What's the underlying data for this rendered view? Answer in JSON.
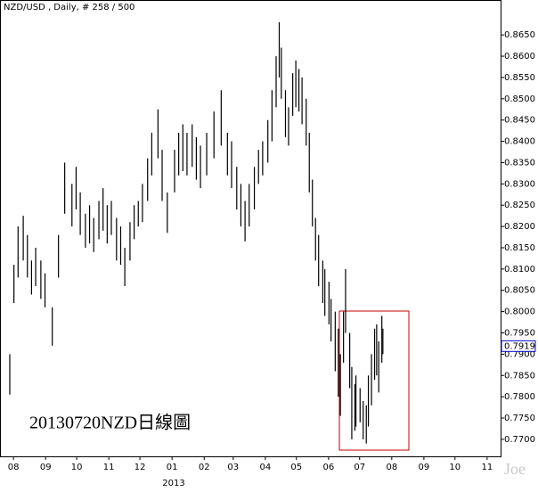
{
  "chart_data": {
    "type": "hilo",
    "title": "NZD/USD , Daily, # 258 / 500",
    "annotation": "20130720NZD日線圖",
    "watermark": "Joe",
    "year_label": "2013",
    "color": "#000000",
    "current_price": {
      "value": 0.7919,
      "label": "0.7919"
    },
    "current_price_color": "#0000cc",
    "x": [
      -4,
      0,
      4,
      9,
      13,
      17,
      21,
      26,
      30,
      37,
      43,
      49,
      56,
      60,
      64,
      69,
      73,
      77,
      82,
      86,
      90,
      94,
      99,
      103,
      107,
      112,
      116,
      120,
      124,
      129,
      133,
      139,
      143,
      148,
      155,
      159,
      163,
      167,
      172,
      176,
      180,
      186,
      193,
      200,
      206,
      210,
      215,
      219,
      223,
      227,
      232,
      236,
      240,
      245,
      249,
      253,
      256,
      258,
      262,
      265,
      269,
      272,
      275,
      278,
      282,
      285,
      288,
      291,
      294,
      298,
      300,
      304,
      306,
      310,
      313,
      315,
      318,
      320,
      324,
      326,
      329,
      330,
      334,
      337,
      340,
      342,
      345,
      348,
      350,
      352,
      355,
      356
    ],
    "high": [
      0.79,
      0.811,
      0.82,
      0.8225,
      0.818,
      0.812,
      0.815,
      0.812,
      0.809,
      0.801,
      0.818,
      0.835,
      0.83,
      0.834,
      0.828,
      0.823,
      0.825,
      0.822,
      0.826,
      0.829,
      0.825,
      0.826,
      0.822,
      0.82,
      0.815,
      0.821,
      0.825,
      0.826,
      0.83,
      0.836,
      0.842,
      0.8475,
      0.838,
      0.828,
      0.838,
      0.842,
      0.844,
      0.842,
      0.844,
      0.841,
      0.839,
      0.842,
      0.847,
      0.852,
      0.842,
      0.84,
      0.834,
      0.83,
      0.826,
      0.83,
      0.834,
      0.838,
      0.84,
      0.845,
      0.852,
      0.86,
      0.868,
      0.862,
      0.852,
      0.848,
      0.856,
      0.859,
      0.857,
      0.855,
      0.85,
      0.842,
      0.831,
      0.822,
      0.818,
      0.812,
      0.81,
      0.807,
      0.803,
      0.8,
      0.796,
      0.79,
      0.8,
      0.81,
      0.795,
      0.787,
      0.783,
      0.785,
      0.782,
      0.779,
      0.778,
      0.785,
      0.79,
      0.796,
      0.797,
      0.793,
      0.799,
      0.796
    ],
    "low": [
      0.7805,
      0.802,
      0.808,
      0.812,
      0.808,
      0.804,
      0.806,
      0.803,
      0.801,
      0.792,
      0.808,
      0.823,
      0.82,
      0.824,
      0.818,
      0.815,
      0.816,
      0.814,
      0.817,
      0.819,
      0.816,
      0.818,
      0.812,
      0.811,
      0.806,
      0.812,
      0.817,
      0.82,
      0.821,
      0.826,
      0.832,
      0.836,
      0.826,
      0.8185,
      0.828,
      0.832,
      0.833,
      0.832,
      0.834,
      0.831,
      0.829,
      0.832,
      0.836,
      0.839,
      0.832,
      0.829,
      0.824,
      0.82,
      0.8165,
      0.82,
      0.824,
      0.83,
      0.832,
      0.835,
      0.84,
      0.848,
      0.855,
      0.85,
      0.841,
      0.839,
      0.846,
      0.848,
      0.847,
      0.844,
      0.839,
      0.828,
      0.82,
      0.812,
      0.806,
      0.802,
      0.799,
      0.797,
      0.793,
      0.786,
      0.78,
      0.7755,
      0.788,
      0.795,
      0.782,
      0.77,
      0.772,
      0.773,
      0.774,
      0.77,
      0.769,
      0.773,
      0.778,
      0.784,
      0.785,
      0.781,
      0.788,
      0.79
    ],
    "xlim": [
      -13,
      470
    ],
    "xticks": [
      {
        "value": 0,
        "label": "08"
      },
      {
        "value": 31,
        "label": "09"
      },
      {
        "value": 61,
        "label": "10"
      },
      {
        "value": 92,
        "label": "11"
      },
      {
        "value": 122,
        "label": "12"
      },
      {
        "value": 153,
        "label": "01"
      },
      {
        "value": 184,
        "label": "02"
      },
      {
        "value": 212,
        "label": "03"
      },
      {
        "value": 243,
        "label": "04"
      },
      {
        "value": 273,
        "label": "05"
      },
      {
        "value": 304,
        "label": "06"
      },
      {
        "value": 334,
        "label": "07"
      },
      {
        "value": 365,
        "label": "08"
      },
      {
        "value": 396,
        "label": "09"
      },
      {
        "value": 426,
        "label": "10"
      },
      {
        "value": 457,
        "label": "11"
      }
    ],
    "ylim": [
      0.766,
      0.8732
    ],
    "yticks": [
      {
        "value": 0.77,
        "label": "0.7700"
      },
      {
        "value": 0.775,
        "label": "0.7750"
      },
      {
        "value": 0.78,
        "label": "0.7800"
      },
      {
        "value": 0.785,
        "label": "0.7850"
      },
      {
        "value": 0.79,
        "label": "0.7900"
      },
      {
        "value": 0.795,
        "label": "0.7950"
      },
      {
        "value": 0.8,
        "label": "0.8000"
      },
      {
        "value": 0.805,
        "label": "0.8050"
      },
      {
        "value": 0.81,
        "label": "0.8100"
      },
      {
        "value": 0.815,
        "label": "0.8150"
      },
      {
        "value": 0.82,
        "label": "0.8200"
      },
      {
        "value": 0.825,
        "label": "0.8250"
      },
      {
        "value": 0.83,
        "label": "0.8300"
      },
      {
        "value": 0.835,
        "label": "0.8350"
      },
      {
        "value": 0.84,
        "label": "0.8400"
      },
      {
        "value": 0.845,
        "label": "0.8450"
      },
      {
        "value": 0.85,
        "label": "0.8500"
      },
      {
        "value": 0.855,
        "label": "0.8550"
      },
      {
        "value": 0.86,
        "label": "0.8600"
      },
      {
        "value": 0.865,
        "label": "0.8650"
      }
    ]
  }
}
